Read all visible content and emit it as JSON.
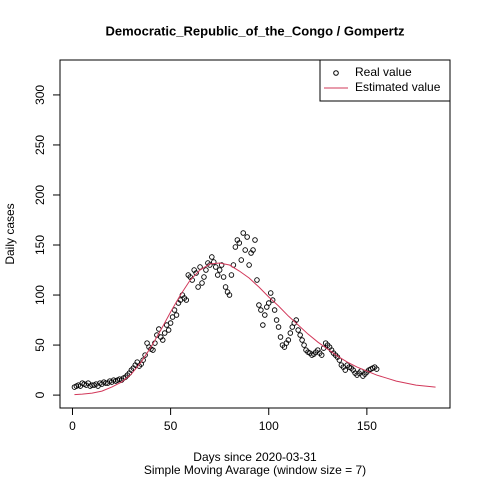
{
  "chart_data": {
    "type": "scatter",
    "title": "Democratic_Republic_of_the_Congo / Gompertz",
    "x_label": "Days since 2020-03-31",
    "subtitle": "Simple Moving Avarage (window size = 7)",
    "y_label": "Daily cases",
    "xlim": [
      -6.36,
      192.36
    ],
    "ylim": [
      -12.9,
      334.9
    ],
    "xticks": [
      0,
      50,
      100,
      150
    ],
    "yticks": [
      0,
      50,
      100,
      150,
      200,
      250,
      300
    ],
    "legend": "top-right",
    "series": [
      {
        "name": "Real value",
        "type": "points",
        "color": "#000000",
        "x": [
          1,
          2,
          3,
          4,
          5,
          6,
          7,
          8,
          9,
          10,
          11,
          12,
          13,
          14,
          15,
          16,
          17,
          18,
          19,
          20,
          21,
          22,
          23,
          24,
          25,
          26,
          27,
          28,
          29,
          30,
          31,
          32,
          33,
          34,
          35,
          36,
          37,
          38,
          39,
          40,
          41,
          42,
          43,
          44,
          45,
          46,
          47,
          48,
          49,
          50,
          51,
          52,
          53,
          54,
          55,
          56,
          57,
          58,
          59,
          60,
          61,
          62,
          63,
          64,
          65,
          66,
          67,
          68,
          69,
          70,
          71,
          72,
          73,
          74,
          75,
          76,
          77,
          78,
          79,
          80,
          81,
          82,
          83,
          84,
          85,
          86,
          87,
          88,
          89,
          90,
          91,
          92,
          93,
          94,
          95,
          96,
          97,
          98,
          99,
          100,
          101,
          102,
          103,
          104,
          105,
          106,
          107,
          108,
          109,
          110,
          111,
          112,
          113,
          114,
          115,
          116,
          117,
          118,
          119,
          120,
          121,
          122,
          123,
          124,
          125,
          126,
          127,
          128,
          129,
          130,
          131,
          132,
          133,
          134,
          135,
          136,
          137,
          138,
          139,
          140,
          141,
          142,
          143,
          144,
          145,
          146,
          147,
          148,
          149,
          150,
          151,
          152,
          153,
          154,
          155
        ],
        "values": [
          8,
          9,
          10,
          9,
          12,
          11,
          10,
          12,
          9,
          10,
          10,
          11,
          9,
          12,
          11,
          13,
          12,
          12,
          14,
          13,
          15,
          14,
          15,
          16,
          15,
          17,
          18,
          20,
          22,
          25,
          27,
          30,
          33,
          29,
          31,
          35,
          40,
          52,
          48,
          46,
          45,
          52,
          60,
          66,
          58,
          55,
          62,
          70,
          65,
          72,
          78,
          85,
          80,
          92,
          95,
          100,
          97,
          95,
          120,
          118,
          115,
          125,
          122,
          108,
          128,
          112,
          118,
          125,
          132,
          130,
          138,
          133,
          128,
          120,
          125,
          130,
          118,
          108,
          103,
          100,
          120,
          130,
          148,
          155,
          152,
          135,
          162,
          145,
          158,
          130,
          142,
          145,
          155,
          115,
          90,
          85,
          70,
          80,
          88,
          92,
          102,
          95,
          85,
          75,
          68,
          58,
          50,
          48,
          52,
          55,
          62,
          68,
          72,
          75,
          65,
          60,
          55,
          50,
          45,
          43,
          42,
          40,
          41,
          43,
          45,
          42,
          40,
          47,
          52,
          50,
          48,
          45,
          42,
          40,
          38,
          35,
          30,
          28,
          25,
          30,
          28,
          27,
          25,
          22,
          20,
          22,
          24,
          19,
          21,
          23,
          25,
          26,
          27,
          28,
          26
        ]
      },
      {
        "name": "Estimated value",
        "type": "line",
        "color": "#d2385a",
        "x": [
          1,
          5,
          10,
          15,
          20,
          25,
          30,
          35,
          40,
          45,
          50,
          55,
          60,
          65,
          70,
          75,
          80,
          85,
          90,
          95,
          100,
          105,
          110,
          115,
          120,
          125,
          130,
          135,
          140,
          145,
          150,
          155,
          160,
          165,
          170,
          175,
          180,
          185
        ],
        "values": [
          0.5,
          1,
          2,
          4,
          8,
          13,
          21,
          33,
          48,
          65,
          83,
          100,
          115,
          125,
          131,
          132,
          130,
          124,
          117,
          108,
          98,
          89,
          79,
          70,
          61,
          53,
          46,
          39,
          33,
          28,
          24,
          20,
          17,
          14,
          12,
          10,
          9,
          8
        ]
      }
    ]
  }
}
